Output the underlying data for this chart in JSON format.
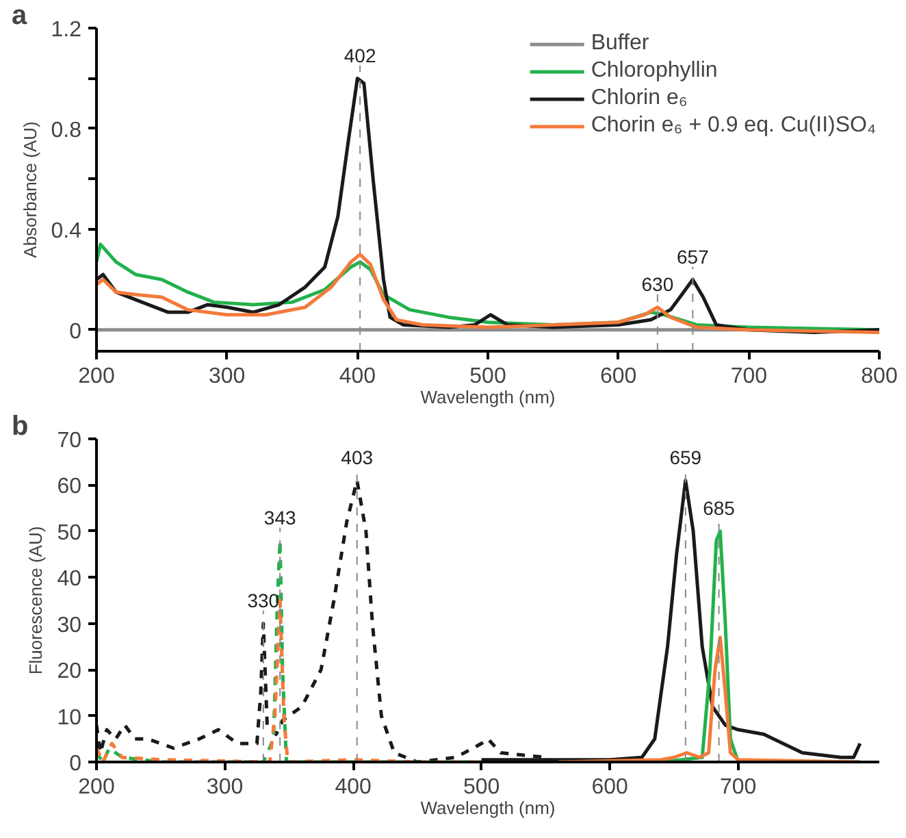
{
  "chart_data": [
    {
      "type": "line",
      "xlabel": "Wavelength (nm)",
      "ylabel": "Absorbance (AU)",
      "annotations": [
        "a"
      ],
      "xlim": [
        200,
        800
      ],
      "ylim": [
        -0.085,
        1.2
      ],
      "xticks": [
        200,
        300,
        400,
        500,
        600,
        700,
        800
      ],
      "yticks": [
        0,
        0.4,
        {
          "value": 0.6,
          "label": null
        },
        0.8,
        {
          "value": 1.0,
          "label": null
        },
        1.2
      ],
      "grid": false,
      "legend": "top right",
      "line_style": "solid",
      "ref_lines": [
        {
          "axis": "x",
          "value": 402,
          "label": "402",
          "line_style": "dashed",
          "color": "#888888"
        },
        {
          "axis": "x",
          "value": 630,
          "label": "630",
          "line_style": "dashed",
          "color": "#888888"
        },
        {
          "axis": "x",
          "value": 657,
          "label": "657",
          "line_style": "dashed",
          "color": "#888888"
        }
      ],
      "series": [
        {
          "name": "Buffer",
          "color": "#8c8c8c",
          "x": [
            200,
            800
          ],
          "values": [
            0,
            0
          ]
        },
        {
          "name": "Chlorophyllin",
          "color": "#22b14c",
          "x": [
            200,
            203,
            215,
            230,
            250,
            270,
            290,
            320,
            350,
            375,
            395,
            402,
            410,
            420,
            440,
            470,
            500,
            550,
            600,
            625,
            635,
            660,
            700,
            800
          ],
          "values": [
            0.27,
            0.34,
            0.27,
            0.22,
            0.2,
            0.15,
            0.11,
            0.1,
            0.11,
            0.16,
            0.25,
            0.27,
            0.24,
            0.14,
            0.08,
            0.05,
            0.03,
            0.02,
            0.03,
            0.07,
            0.06,
            0.02,
            0.01,
            0
          ]
        },
        {
          "name": "Chlorin e₆",
          "color": "#1a1a1a",
          "x": [
            200,
            205,
            215,
            240,
            255,
            270,
            285,
            300,
            320,
            340,
            360,
            375,
            385,
            393,
            400,
            405,
            412,
            420,
            425,
            435,
            470,
            490,
            502,
            515,
            550,
            600,
            625,
            640,
            650,
            657,
            665,
            675,
            700,
            750,
            800
          ],
          "values": [
            0.2,
            0.22,
            0.15,
            0.1,
            0.07,
            0.07,
            0.1,
            0.09,
            0.07,
            0.1,
            0.17,
            0.25,
            0.45,
            0.75,
            1.0,
            0.98,
            0.6,
            0.2,
            0.05,
            0.02,
            0.01,
            0.02,
            0.06,
            0.02,
            0.01,
            0.02,
            0.04,
            0.08,
            0.15,
            0.2,
            0.13,
            0.02,
            0,
            -0.01,
            0
          ]
        },
        {
          "name": "Chorin e₆ + 0.9 eq. Cu(II)SO₄",
          "color": "#f47a3a",
          "x": [
            200,
            205,
            215,
            230,
            250,
            270,
            300,
            330,
            360,
            380,
            395,
            402,
            410,
            420,
            430,
            450,
            500,
            550,
            600,
            620,
            630,
            640,
            660,
            700,
            800
          ],
          "values": [
            0.18,
            0.2,
            0.15,
            0.14,
            0.13,
            0.08,
            0.06,
            0.06,
            0.09,
            0.17,
            0.27,
            0.3,
            0.26,
            0.12,
            0.04,
            0.02,
            0.01,
            0.02,
            0.03,
            0.06,
            0.09,
            0.05,
            0.01,
            0,
            -0.01
          ]
        }
      ]
    },
    {
      "type": "line",
      "xlabel": "Wavelength (nm)",
      "ylabel": "Fluorescence (AU)",
      "annotations": [
        "b"
      ],
      "xlim": [
        200,
        810
      ],
      "ylim": [
        0,
        70
      ],
      "xticks": [
        200,
        300,
        400,
        500,
        600,
        700
      ],
      "yticks": [
        0,
        10,
        20,
        30,
        40,
        50,
        60,
        70
      ],
      "grid": false,
      "ref_lines": [
        {
          "axis": "x",
          "value": 330,
          "label": "330",
          "line_style": "dashed",
          "color": "#888888"
        },
        {
          "axis": "x",
          "value": 343,
          "label": "343",
          "line_style": "dashed",
          "color": "#888888"
        },
        {
          "axis": "x",
          "value": 403,
          "label": "403",
          "line_style": "dashed",
          "color": "#888888"
        },
        {
          "axis": "x",
          "value": 659,
          "label": "659",
          "line_style": "dashed",
          "color": "#888888"
        },
        {
          "axis": "x",
          "value": 685,
          "label": "685",
          "line_style": "dashed",
          "color": "#888888"
        }
      ],
      "series": [
        {
          "color": "#1a1a1a",
          "line_style": "dashed",
          "x": [
            200,
            203,
            208,
            215,
            222,
            230,
            240,
            260,
            280,
            295,
            310,
            325,
            328,
            330,
            333,
            340,
            345,
            360,
            375,
            385,
            395,
            403,
            410,
            415,
            422,
            432,
            450,
            480,
            500,
            505,
            515,
            550,
            555
          ],
          "values": [
            8,
            2,
            7,
            5,
            8,
            5,
            5,
            3,
            5,
            7,
            4,
            4,
            15,
            30,
            8,
            6,
            9,
            12,
            20,
            35,
            52,
            61,
            50,
            30,
            10,
            2,
            0,
            1,
            4,
            5,
            2,
            1,
            0
          ]
        },
        {
          "color": "#22b14c",
          "line_style": "dashed",
          "x": [
            200,
            205,
            210,
            220,
            250,
            330,
            338,
            341,
            343,
            345,
            348,
            400,
            550
          ],
          "values": [
            2,
            0,
            3,
            1,
            0,
            0,
            5,
            35,
            48,
            20,
            0,
            0,
            0
          ]
        },
        {
          "color": "#f47a3a",
          "line_style": "dashed",
          "x": [
            200,
            205,
            212,
            220,
            250,
            335,
            339,
            343,
            346,
            349,
            400,
            450,
            550
          ],
          "values": [
            3,
            0,
            4,
            1,
            0.5,
            0,
            10,
            35,
            10,
            0,
            0.5,
            0,
            0
          ]
        },
        {
          "color": "#1a1a1a",
          "line_style": "solid",
          "x": [
            500,
            600,
            625,
            635,
            645,
            652,
            659,
            665,
            672,
            680,
            690,
            700,
            720,
            735,
            750,
            780,
            790,
            795
          ],
          "values": [
            0.5,
            0.5,
            1,
            5,
            25,
            45,
            61,
            50,
            25,
            12,
            8,
            7,
            6,
            4,
            2,
            1,
            1,
            4
          ]
        },
        {
          "color": "#22b14c",
          "line_style": "solid",
          "x": [
            560,
            640,
            672,
            678,
            683,
            686,
            690,
            694,
            700,
            795
          ],
          "values": [
            0,
            0,
            1,
            20,
            48,
            50,
            30,
            5,
            0,
            0
          ]
        },
        {
          "color": "#f47a3a",
          "line_style": "solid",
          "x": [
            560,
            640,
            650,
            660,
            670,
            677,
            682,
            686,
            690,
            694,
            700,
            795
          ],
          "values": [
            0,
            0.5,
            1,
            2,
            1,
            2,
            20,
            27,
            15,
            2,
            0.5,
            0
          ]
        }
      ]
    }
  ]
}
